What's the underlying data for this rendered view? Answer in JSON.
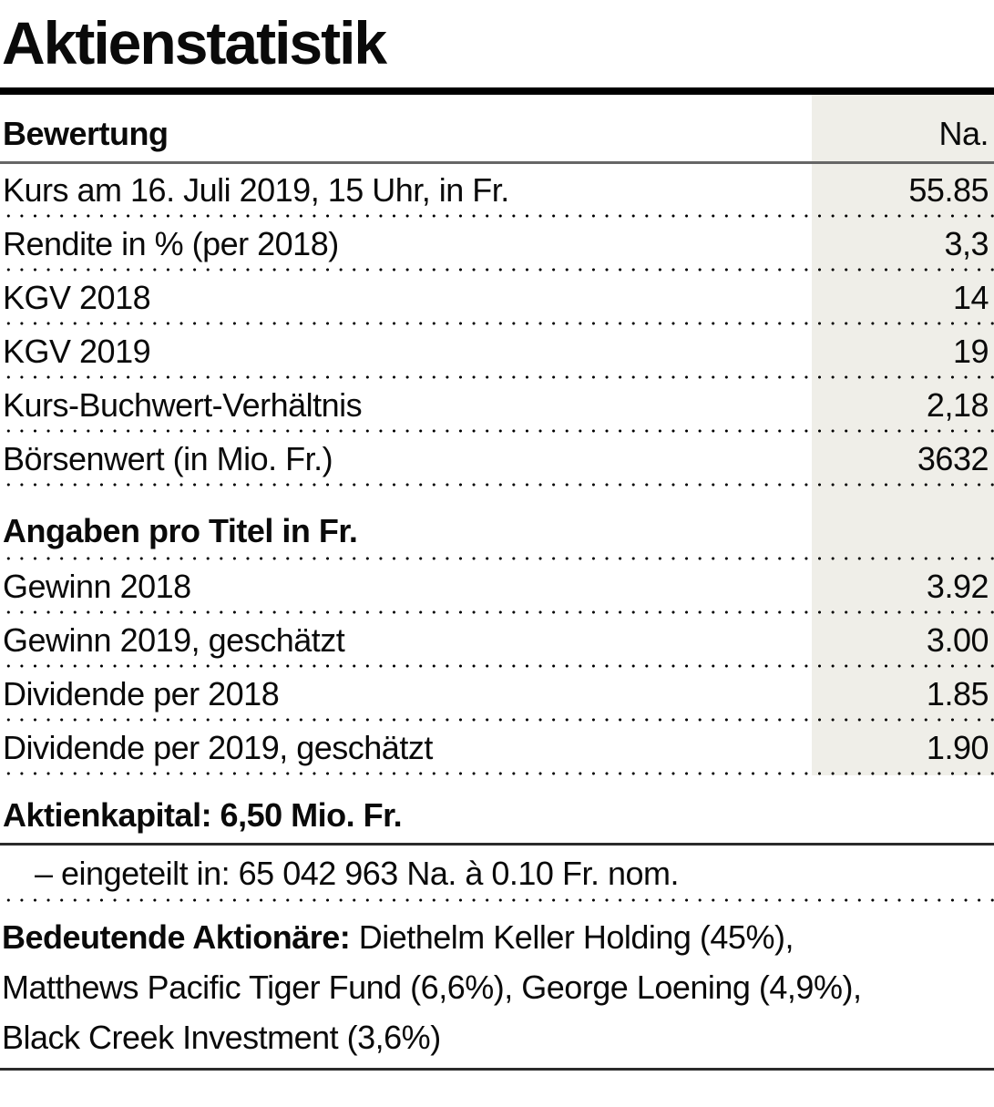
{
  "title": "Aktienstatistik",
  "table": {
    "header": {
      "label": "Bewertung",
      "unit": "Na."
    },
    "valuation_rows": [
      {
        "label": "Kurs am 16. Juli 2019, 15 Uhr, in Fr.",
        "value": "55.85"
      },
      {
        "label": "Rendite in % (per 2018)",
        "value": "3,3"
      },
      {
        "label": "KGV 2018",
        "value": "14"
      },
      {
        "label": "KGV 2019",
        "value": "19"
      },
      {
        "label": "Kurs-Buchwert-Verhältnis",
        "value": "2,18"
      },
      {
        "label": "Börsenwert (in Mio. Fr.)",
        "value": "3632"
      }
    ],
    "per_share_heading": "Angaben pro Titel in Fr.",
    "per_share_rows": [
      {
        "label": "Gewinn 2018",
        "value": "3.92"
      },
      {
        "label": "Gewinn 2019, geschätzt",
        "value": "3.00"
      },
      {
        "label": "Dividende per 2018",
        "value": "1.85"
      },
      {
        "label": "Dividende per 2019, geschätzt",
        "value": "1.90"
      }
    ]
  },
  "capital": {
    "heading": "Aktienkapital: 6,50 Mio. Fr.",
    "detail": "– eingeteilt in: 65 042 963 Na. à 0.10 Fr. nom."
  },
  "shareholders": {
    "label": "Bedeutende Aktionäre:",
    "line1_rest": " Diethelm Keller Holding (45%),",
    "line2": "Matthews Pacific Tiger Fund (6,6%), George Loening (4,9%),",
    "line3": "Black Creek Investment (3,6%)"
  },
  "colors": {
    "column_shade": "#efeee8",
    "top_rule": "#000000",
    "header_rule": "#666666",
    "body_rule": "#2b2b2b",
    "text": "#0a0a0a"
  }
}
